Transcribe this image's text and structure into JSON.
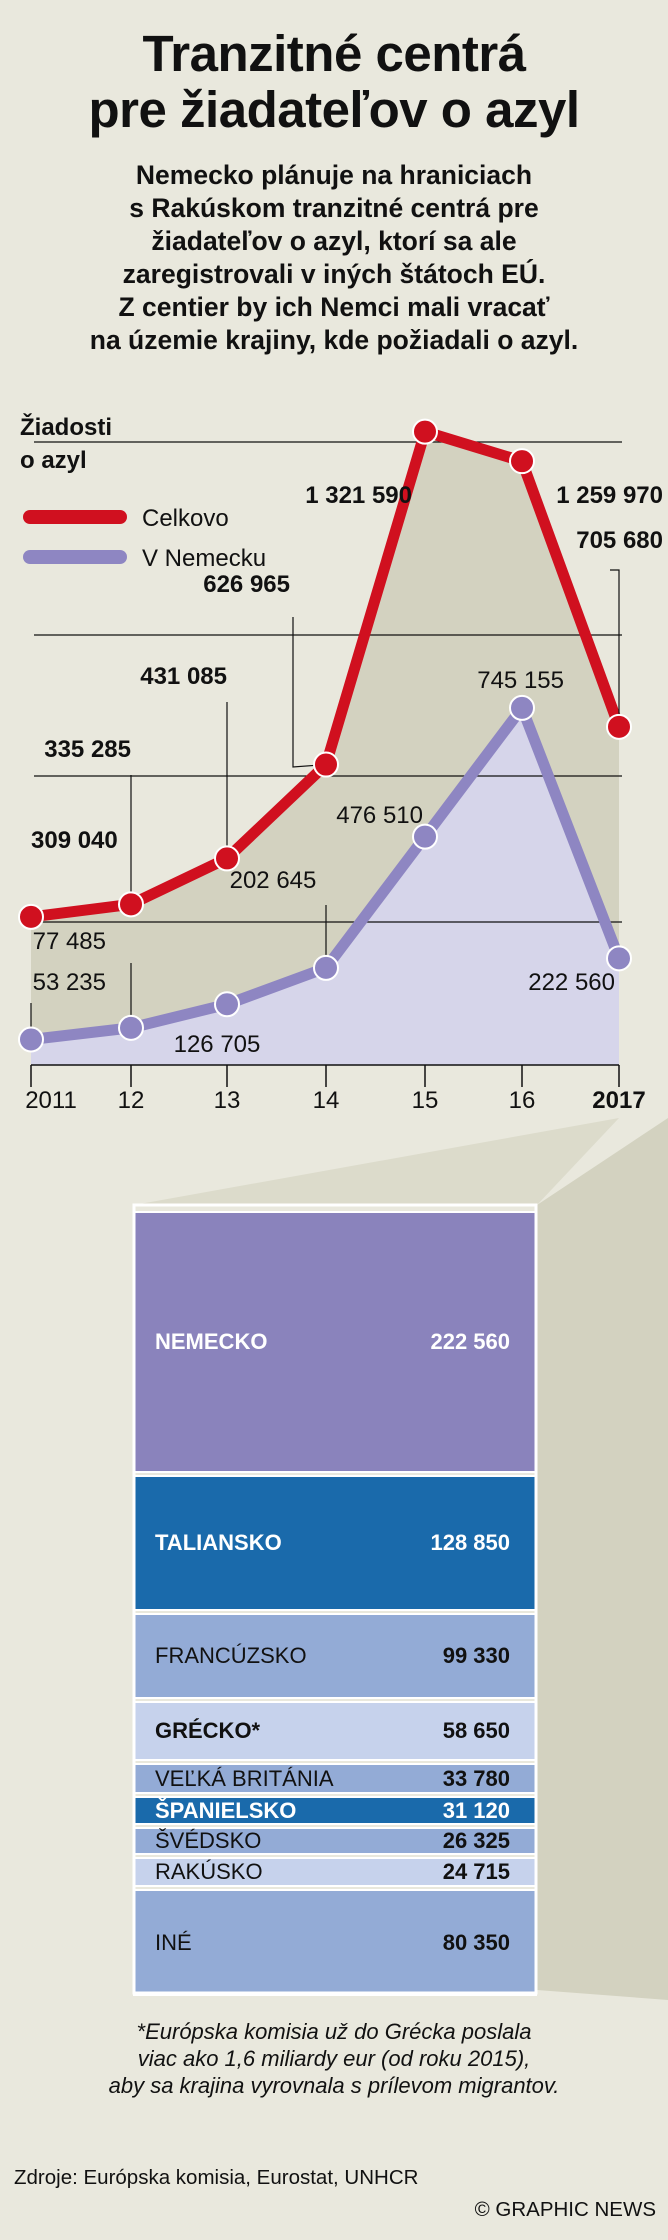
{
  "header": {
    "title_line1": "Tranzitné centrá",
    "title_line2": "pre žiadateľov o azyl",
    "subtitle_lines": [
      "Nemecko plánuje na hraniciach",
      "s Rakúskom tranzitné centrá pre",
      "žiadateľov o azyl, ktorí sa ale",
      "zaregistrovali v iných štátoch EÚ.",
      "Z centier by ich Nemci mali vracať",
      "na územie krajiny, kde požiadali o azyl."
    ]
  },
  "colors": {
    "background": "#e9e8dd",
    "total_line": "#d0101f",
    "germany_line": "#8e86c2",
    "total_area": "#d3d2c0",
    "germany_area": "#d6d5ea",
    "dark_purple": "#8a83bc",
    "dark_blue": "#1a6aab",
    "light_blue": "#93abd6",
    "pale_blue": "#c6d2ec"
  },
  "chart_data": {
    "type": "line",
    "ylabel_line1": "Žiadosti",
    "ylabel_line2": "o azyl",
    "x": [
      "2011",
      "12",
      "13",
      "14",
      "15",
      "16",
      "2017"
    ],
    "ylim": [
      0,
      1400000
    ],
    "series": [
      {
        "name": "Celkovo",
        "values": [
          309040,
          335285,
          431085,
          626965,
          1321590,
          1259970,
          705680
        ],
        "labels": [
          "309 040",
          "335 285",
          "431 085",
          "626 965",
          "1 321 590",
          "1 259 970",
          "705 680"
        ]
      },
      {
        "name": "V Nemecku",
        "values": [
          53235,
          77485,
          126705,
          202645,
          476510,
          745155,
          222560
        ],
        "labels": [
          "53 235",
          "77 485",
          "126 705",
          "202 645",
          "476 510",
          "745 155",
          "222 560"
        ]
      }
    ]
  },
  "breakdown": {
    "year_detail": "2017",
    "countries": [
      {
        "name": "NEMECKO",
        "value": "222 560",
        "color": "#8a83bc",
        "text": "#ffffff",
        "bold": true
      },
      {
        "name": "TALIANSKO",
        "value": "128 850",
        "color": "#1a6aab",
        "text": "#ffffff",
        "bold": true
      },
      {
        "name": "FRANCÚZSKO",
        "value": "99 330",
        "color": "#93abd6",
        "text": "#111111",
        "bold": false
      },
      {
        "name": "GRÉCKO*",
        "value": "58 650",
        "color": "#c6d2ec",
        "text": "#111111",
        "bold": true
      },
      {
        "name": "VEĽKÁ BRITÁNIA",
        "value": "33 780",
        "color": "#93abd6",
        "text": "#111111",
        "bold": false
      },
      {
        "name": "ŠPANIELSKO",
        "value": "31 120",
        "color": "#1a6aab",
        "text": "#ffffff",
        "bold": true
      },
      {
        "name": "ŠVÉDSKO",
        "value": "26 325",
        "color": "#93abd6",
        "text": "#111111",
        "bold": false
      },
      {
        "name": "RAKÚSKO",
        "value": "24 715",
        "color": "#c6d2ec",
        "text": "#111111",
        "bold": false
      },
      {
        "name": "INÉ",
        "value": "80 350",
        "color": "#93abd6",
        "text": "#111111",
        "bold": false
      }
    ]
  },
  "footer": {
    "footnote_lines": [
      "*Európska komisia už do Grécka poslala",
      "viac ako 1,6 miliardy eur (od roku 2015),",
      "aby sa krajina vyrovnala s prílevom migrantov."
    ],
    "sources": "Zdroje: Európska komisia, Eurostat, UNHCR",
    "credit": "© GRAPHIC NEWS"
  }
}
